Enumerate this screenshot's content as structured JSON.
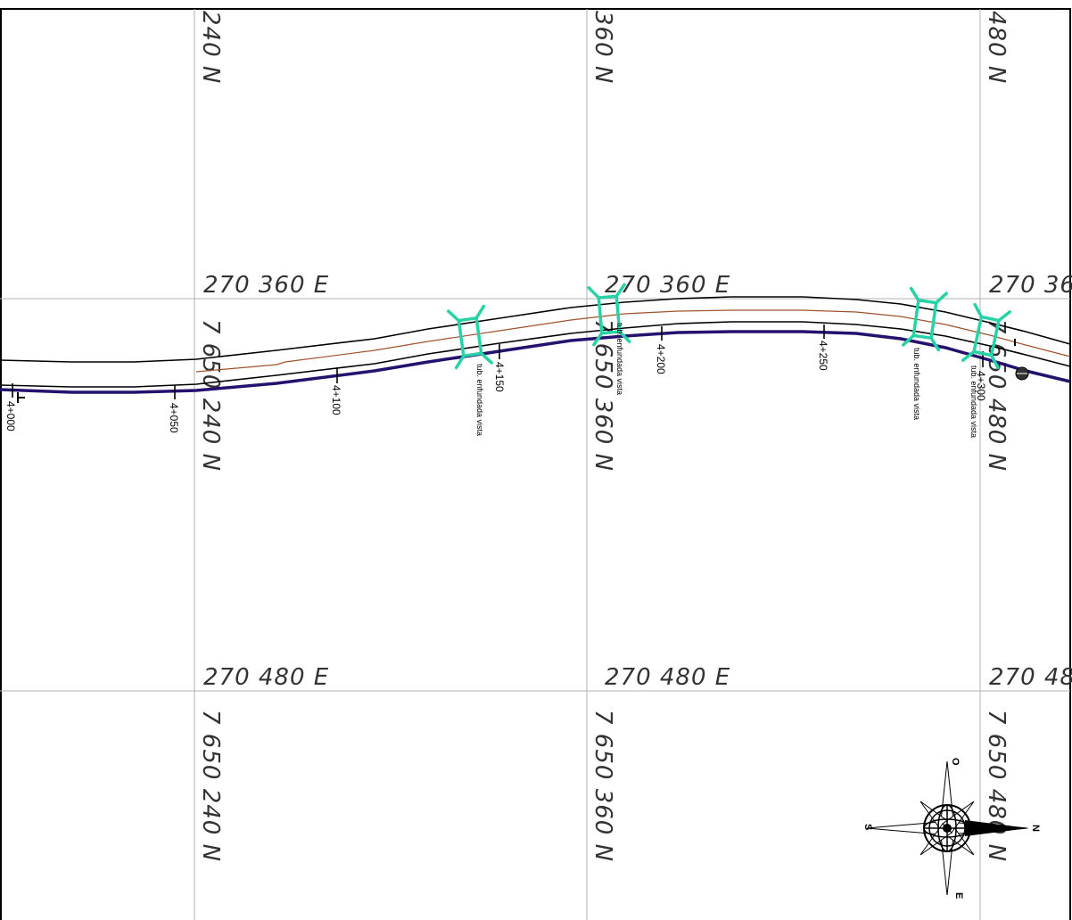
{
  "grid": {
    "easting_labels": [
      {
        "text": "270 360 E"
      },
      {
        "text": "270 360 E"
      },
      {
        "text": "270 36"
      },
      {
        "text": "270 480 E"
      },
      {
        "text": "270 480 E"
      },
      {
        "text": "270 48"
      }
    ],
    "northing_labels": [
      {
        "text": "240 N"
      },
      {
        "text": "360 N"
      },
      {
        "text": "480 N"
      },
      {
        "text": "7 650 240 N"
      },
      {
        "text": "7 650 360 N"
      },
      {
        "text": "7 650 480 N"
      },
      {
        "text": "7 650 240 N"
      },
      {
        "text": "7 650 360 N"
      },
      {
        "text": "7 650 480 N"
      }
    ]
  },
  "stations": [
    {
      "text": "4+000"
    },
    {
      "text": "4+050"
    },
    {
      "text": "4+100"
    },
    {
      "text": "4+150"
    },
    {
      "text": "4+200"
    },
    {
      "text": "4+250"
    },
    {
      "text": "4+300"
    }
  ],
  "culverts": [
    {
      "note": "tub. enfundada vista"
    },
    {
      "note": "tub. enfundada vista"
    },
    {
      "note": "tub. enfundada vista"
    },
    {
      "note": "tub. enfundada vista"
    }
  ],
  "compass": {
    "n": "N",
    "s": "S",
    "e": "E",
    "o": "O"
  },
  "colors": {
    "grid": "#b0b0b0",
    "road_edge": "#000000",
    "centerline": "#a0522d",
    "pipeline": "#24126e",
    "culvert": "#27d3a6"
  }
}
